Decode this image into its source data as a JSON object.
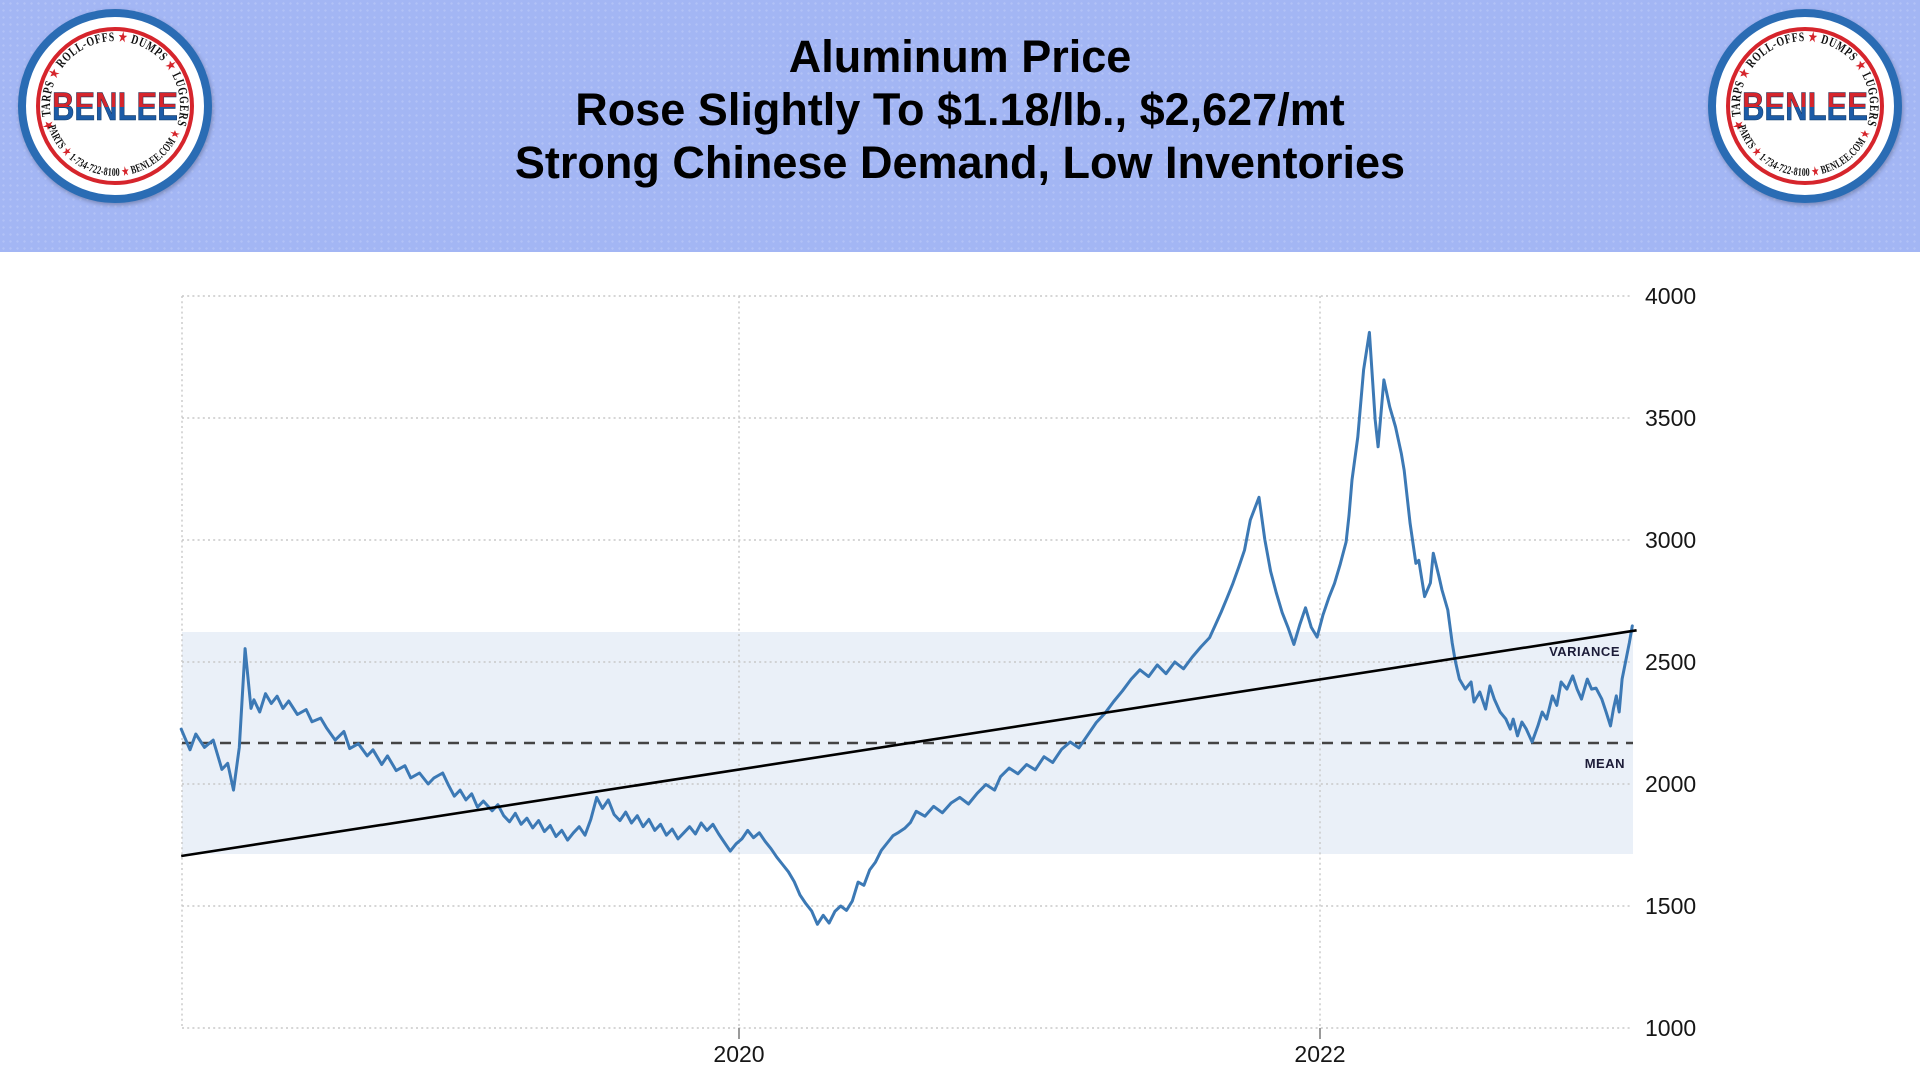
{
  "header": {
    "title_lines": [
      "Aluminum Price",
      "Rose Slightly To $1.18/lb., $2,627/mt",
      "Strong Chinese Demand, Low Inventories"
    ],
    "background_color": "#a3b6f4"
  },
  "logo": {
    "brand_text": "BENLEE",
    "arc_top_segments": [
      "★",
      "TARPS",
      "★",
      "ROLL-OFFS",
      "★",
      "DUMPS",
      "★",
      "LUGGERS"
    ],
    "arc_bottom_segments": [
      "PARTS",
      "★",
      "1-734-722-8100",
      "★",
      "BENLEE.COM",
      "★"
    ],
    "colors": {
      "outer_ring": "#2a6cb4",
      "inner_ring": "#d6252c",
      "star": "#d6252c",
      "arc_text": "#101010",
      "brand_top": "#d6252c",
      "brand_bottom": "#1c5ba6"
    }
  },
  "chart_data": {
    "type": "line",
    "title": "",
    "xlabel": "",
    "ylabel": "",
    "grid": true,
    "xlim": [
      2018.08,
      2023.09
    ],
    "ylim": [
      1000,
      4000
    ],
    "x_ticks": [
      {
        "value": 2020,
        "label": "2020"
      },
      {
        "value": 2022,
        "label": "2022"
      }
    ],
    "y_ticks": [
      {
        "value": 4000,
        "label": "4000"
      },
      {
        "value": 3500,
        "label": "3500"
      },
      {
        "value": 3000,
        "label": "3000"
      },
      {
        "value": 2500,
        "label": "2500"
      },
      {
        "value": 2000,
        "label": "2000"
      },
      {
        "value": 1500,
        "label": "1500"
      },
      {
        "value": 1000,
        "label": "1000"
      }
    ],
    "variance_band": {
      "label": "VARIANCE",
      "lower": 1713,
      "upper": 2623,
      "fill": "#eaf0f8"
    },
    "mean_line": {
      "label": "MEAN",
      "value": 2168,
      "color": "#444444"
    },
    "trend_line": {
      "color": "#000000",
      "points": [
        [
          2018.08,
          1705
        ],
        [
          2023.09,
          2630
        ]
      ]
    },
    "series": [
      {
        "name": "aluminum-price-usd-per-mt",
        "color": "#3c79b5",
        "points": [
          [
            2018.08,
            2225
          ],
          [
            2018.11,
            2140
          ],
          [
            2018.13,
            2205
          ],
          [
            2018.16,
            2150
          ],
          [
            2018.19,
            2180
          ],
          [
            2018.22,
            2060
          ],
          [
            2018.24,
            2085
          ],
          [
            2018.26,
            1975
          ],
          [
            2018.28,
            2150
          ],
          [
            2018.3,
            2555
          ],
          [
            2018.32,
            2310
          ],
          [
            2018.33,
            2345
          ],
          [
            2018.35,
            2295
          ],
          [
            2018.37,
            2370
          ],
          [
            2018.39,
            2330
          ],
          [
            2018.41,
            2360
          ],
          [
            2018.43,
            2310
          ],
          [
            2018.45,
            2340
          ],
          [
            2018.48,
            2285
          ],
          [
            2018.51,
            2305
          ],
          [
            2018.53,
            2255
          ],
          [
            2018.56,
            2270
          ],
          [
            2018.58,
            2230
          ],
          [
            2018.61,
            2180
          ],
          [
            2018.64,
            2215
          ],
          [
            2018.66,
            2145
          ],
          [
            2018.69,
            2165
          ],
          [
            2018.72,
            2115
          ],
          [
            2018.74,
            2140
          ],
          [
            2018.77,
            2080
          ],
          [
            2018.79,
            2115
          ],
          [
            2018.82,
            2055
          ],
          [
            2018.85,
            2075
          ],
          [
            2018.87,
            2025
          ],
          [
            2018.9,
            2045
          ],
          [
            2018.93,
            2000
          ],
          [
            2018.95,
            2025
          ],
          [
            2018.98,
            2045
          ],
          [
            2019.0,
            1995
          ],
          [
            2019.02,
            1950
          ],
          [
            2019.04,
            1975
          ],
          [
            2019.06,
            1935
          ],
          [
            2019.08,
            1960
          ],
          [
            2019.1,
            1905
          ],
          [
            2019.12,
            1930
          ],
          [
            2019.15,
            1890
          ],
          [
            2019.17,
            1915
          ],
          [
            2019.19,
            1870
          ],
          [
            2019.21,
            1845
          ],
          [
            2019.23,
            1880
          ],
          [
            2019.25,
            1835
          ],
          [
            2019.27,
            1860
          ],
          [
            2019.29,
            1820
          ],
          [
            2019.31,
            1850
          ],
          [
            2019.33,
            1805
          ],
          [
            2019.35,
            1830
          ],
          [
            2019.37,
            1785
          ],
          [
            2019.39,
            1810
          ],
          [
            2019.41,
            1770
          ],
          [
            2019.43,
            1800
          ],
          [
            2019.45,
            1825
          ],
          [
            2019.47,
            1790
          ],
          [
            2019.49,
            1855
          ],
          [
            2019.51,
            1945
          ],
          [
            2019.53,
            1900
          ],
          [
            2019.55,
            1935
          ],
          [
            2019.57,
            1875
          ],
          [
            2019.59,
            1850
          ],
          [
            2019.61,
            1885
          ],
          [
            2019.63,
            1840
          ],
          [
            2019.65,
            1870
          ],
          [
            2019.67,
            1825
          ],
          [
            2019.69,
            1855
          ],
          [
            2019.71,
            1810
          ],
          [
            2019.73,
            1835
          ],
          [
            2019.75,
            1790
          ],
          [
            2019.77,
            1815
          ],
          [
            2019.79,
            1775
          ],
          [
            2019.81,
            1800
          ],
          [
            2019.83,
            1825
          ],
          [
            2019.85,
            1795
          ],
          [
            2019.87,
            1840
          ],
          [
            2019.89,
            1810
          ],
          [
            2019.91,
            1835
          ],
          [
            2019.93,
            1795
          ],
          [
            2019.95,
            1760
          ],
          [
            2019.97,
            1725
          ],
          [
            2019.99,
            1755
          ],
          [
            2020.01,
            1775
          ],
          [
            2020.03,
            1810
          ],
          [
            2020.05,
            1780
          ],
          [
            2020.07,
            1800
          ],
          [
            2020.09,
            1765
          ],
          [
            2020.11,
            1735
          ],
          [
            2020.13,
            1700
          ],
          [
            2020.15,
            1670
          ],
          [
            2020.17,
            1640
          ],
          [
            2020.19,
            1600
          ],
          [
            2020.21,
            1545
          ],
          [
            2020.23,
            1510
          ],
          [
            2020.25,
            1480
          ],
          [
            2020.27,
            1425
          ],
          [
            2020.29,
            1462
          ],
          [
            2020.31,
            1430
          ],
          [
            2020.33,
            1478
          ],
          [
            2020.35,
            1500
          ],
          [
            2020.37,
            1482
          ],
          [
            2020.39,
            1520
          ],
          [
            2020.41,
            1598
          ],
          [
            2020.43,
            1585
          ],
          [
            2020.45,
            1648
          ],
          [
            2020.47,
            1680
          ],
          [
            2020.49,
            1728
          ],
          [
            2020.51,
            1758
          ],
          [
            2020.53,
            1788
          ],
          [
            2020.55,
            1802
          ],
          [
            2020.57,
            1818
          ],
          [
            2020.59,
            1842
          ],
          [
            2020.61,
            1888
          ],
          [
            2020.64,
            1868
          ],
          [
            2020.67,
            1908
          ],
          [
            2020.7,
            1882
          ],
          [
            2020.73,
            1922
          ],
          [
            2020.76,
            1945
          ],
          [
            2020.79,
            1918
          ],
          [
            2020.82,
            1962
          ],
          [
            2020.85,
            1998
          ],
          [
            2020.88,
            1975
          ],
          [
            2020.9,
            2030
          ],
          [
            2020.93,
            2065
          ],
          [
            2020.96,
            2042
          ],
          [
            2020.99,
            2080
          ],
          [
            2021.02,
            2058
          ],
          [
            2021.05,
            2112
          ],
          [
            2021.08,
            2088
          ],
          [
            2021.11,
            2142
          ],
          [
            2021.14,
            2172
          ],
          [
            2021.17,
            2148
          ],
          [
            2021.2,
            2200
          ],
          [
            2021.23,
            2252
          ],
          [
            2021.26,
            2290
          ],
          [
            2021.29,
            2338
          ],
          [
            2021.32,
            2382
          ],
          [
            2021.35,
            2430
          ],
          [
            2021.38,
            2468
          ],
          [
            2021.41,
            2440
          ],
          [
            2021.44,
            2488
          ],
          [
            2021.47,
            2452
          ],
          [
            2021.5,
            2500
          ],
          [
            2021.53,
            2472
          ],
          [
            2021.56,
            2520
          ],
          [
            2021.59,
            2562
          ],
          [
            2021.62,
            2600
          ],
          [
            2021.64,
            2652
          ],
          [
            2021.66,
            2705
          ],
          [
            2021.68,
            2762
          ],
          [
            2021.7,
            2822
          ],
          [
            2021.72,
            2888
          ],
          [
            2021.74,
            2958
          ],
          [
            2021.76,
            3082
          ],
          [
            2021.79,
            3175
          ],
          [
            2021.81,
            3002
          ],
          [
            2021.83,
            2872
          ],
          [
            2021.85,
            2782
          ],
          [
            2021.87,
            2702
          ],
          [
            2021.89,
            2642
          ],
          [
            2021.91,
            2572
          ],
          [
            2021.93,
            2652
          ],
          [
            2021.95,
            2722
          ],
          [
            2021.97,
            2642
          ],
          [
            2021.99,
            2602
          ],
          [
            2022.01,
            2692
          ],
          [
            2022.03,
            2762
          ],
          [
            2022.05,
            2822
          ],
          [
            2022.07,
            2902
          ],
          [
            2022.09,
            2992
          ],
          [
            2022.1,
            3100
          ],
          [
            2022.11,
            3246
          ],
          [
            2022.13,
            3422
          ],
          [
            2022.15,
            3697
          ],
          [
            2022.17,
            3851
          ],
          [
            2022.19,
            3492
          ],
          [
            2022.2,
            3382
          ],
          [
            2022.22,
            3656
          ],
          [
            2022.24,
            3546
          ],
          [
            2022.26,
            3464
          ],
          [
            2022.28,
            3355
          ],
          [
            2022.29,
            3285
          ],
          [
            2022.31,
            3068
          ],
          [
            2022.33,
            2904
          ],
          [
            2022.34,
            2917
          ],
          [
            2022.36,
            2768
          ],
          [
            2022.38,
            2824
          ],
          [
            2022.39,
            2946
          ],
          [
            2022.41,
            2848
          ],
          [
            2022.42,
            2795
          ],
          [
            2022.44,
            2713
          ],
          [
            2022.455,
            2578
          ],
          [
            2022.465,
            2508
          ],
          [
            2022.475,
            2455
          ],
          [
            2022.48,
            2430
          ],
          [
            2022.5,
            2389
          ],
          [
            2022.52,
            2418
          ],
          [
            2022.53,
            2336
          ],
          [
            2022.55,
            2377
          ],
          [
            2022.57,
            2307
          ],
          [
            2022.585,
            2402
          ],
          [
            2022.6,
            2348
          ],
          [
            2022.62,
            2295
          ],
          [
            2022.64,
            2266
          ],
          [
            2022.655,
            2225
          ],
          [
            2022.665,
            2266
          ],
          [
            2022.68,
            2197
          ],
          [
            2022.695,
            2254
          ],
          [
            2022.71,
            2225
          ],
          [
            2022.73,
            2172
          ],
          [
            2022.75,
            2238
          ],
          [
            2022.765,
            2295
          ],
          [
            2022.78,
            2266
          ],
          [
            2022.8,
            2361
          ],
          [
            2022.815,
            2322
          ],
          [
            2022.83,
            2418
          ],
          [
            2022.85,
            2389
          ],
          [
            2022.87,
            2443
          ],
          [
            2022.885,
            2389
          ],
          [
            2022.9,
            2348
          ],
          [
            2022.92,
            2430
          ],
          [
            2022.935,
            2389
          ],
          [
            2022.95,
            2393
          ],
          [
            2022.97,
            2348
          ],
          [
            2022.985,
            2295
          ],
          [
            2023.0,
            2238
          ],
          [
            2023.01,
            2307
          ],
          [
            2023.02,
            2361
          ],
          [
            2023.03,
            2295
          ],
          [
            2023.04,
            2430
          ],
          [
            2023.055,
            2520
          ],
          [
            2023.065,
            2580
          ],
          [
            2023.075,
            2648
          ]
        ]
      }
    ]
  }
}
